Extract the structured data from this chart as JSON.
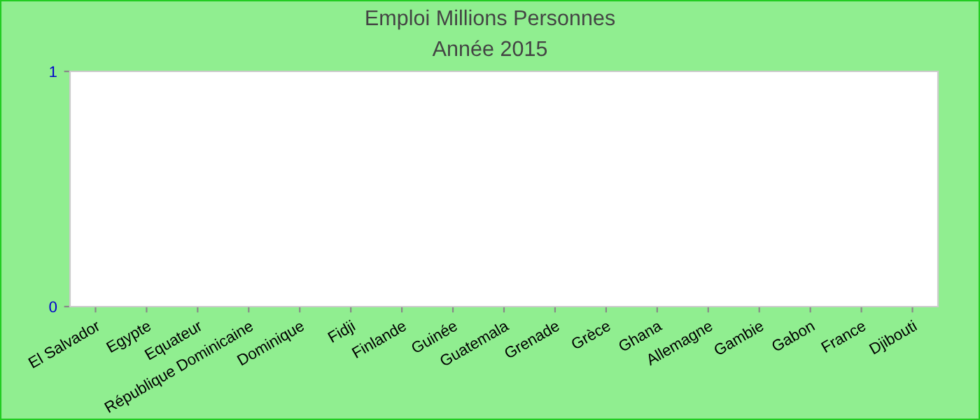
{
  "chart_data": {
    "type": "bar",
    "title": "Emploi Millions Personnes",
    "subtitle": "Année 2015",
    "categories": [
      "El Salvador",
      "Egypte",
      "Equateur",
      "République Dominicaine",
      "Dominique",
      "Fidji",
      "Finlande",
      "Guinée",
      "Guatemala",
      "Grenade",
      "Grèce",
      "Ghana",
      "Allemagne",
      "Gambie",
      "Gabon",
      "France",
      "Djibouti"
    ],
    "values": [
      0,
      0,
      0,
      0,
      0,
      0,
      0,
      0,
      0,
      0,
      0,
      0,
      0,
      0,
      0,
      0,
      0
    ],
    "ylim": [
      0,
      1
    ],
    "yticks": [
      0,
      1
    ],
    "grid": false,
    "legend": false
  }
}
